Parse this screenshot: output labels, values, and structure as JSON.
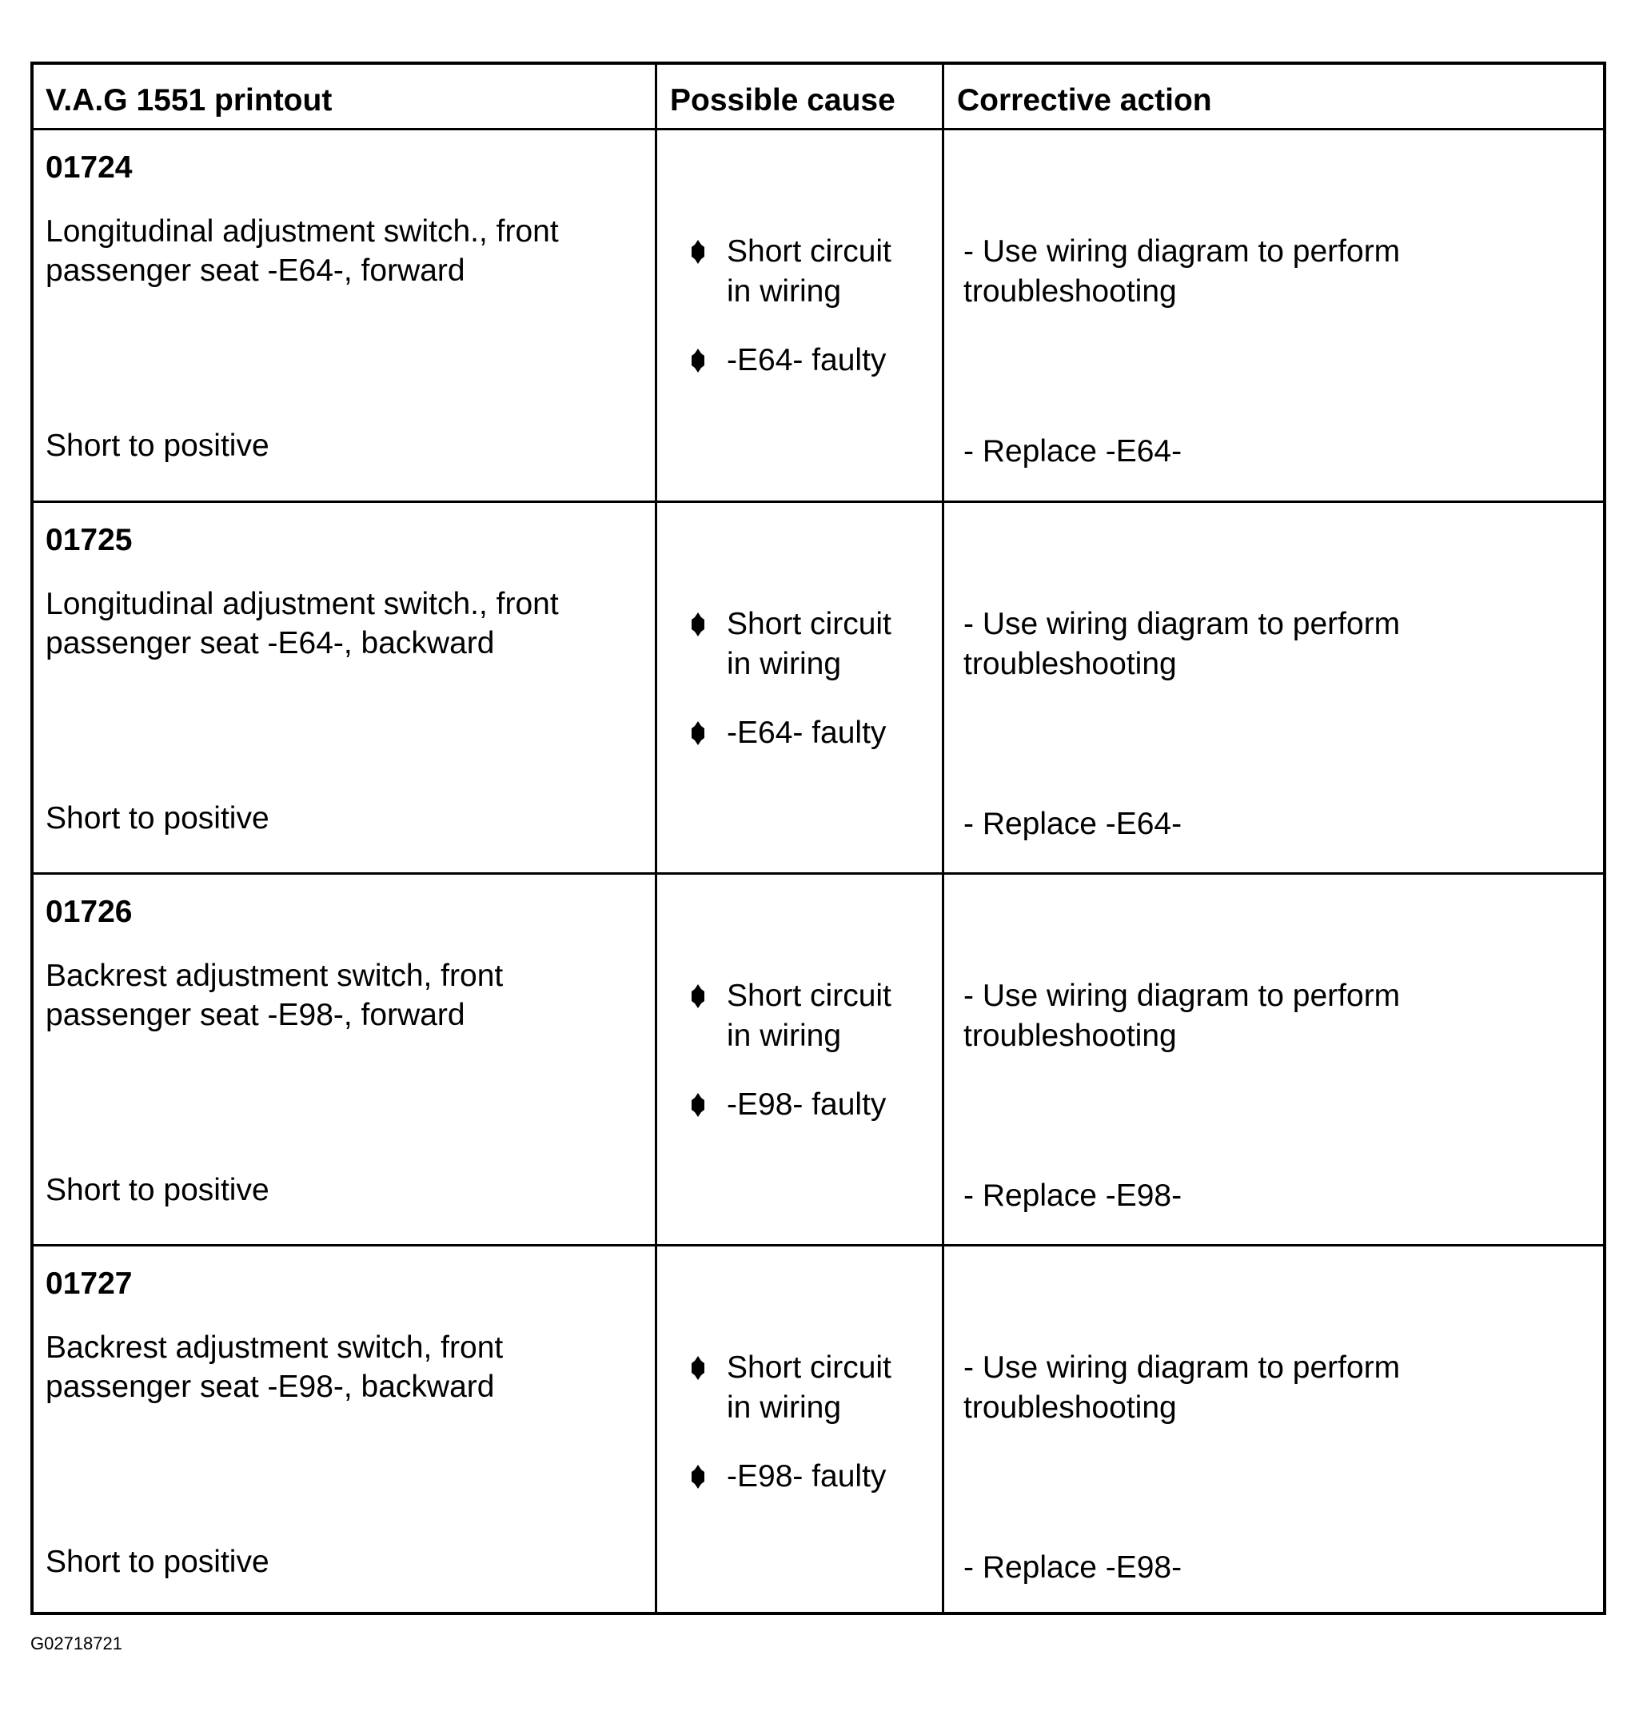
{
  "header": {
    "col1": "V.A.G 1551 printout",
    "col2": "Possible cause",
    "col3": "Corrective action"
  },
  "rows": [
    {
      "code": "01724",
      "description": [
        "Longitudinal adjustment switch., front",
        "passenger seat -E64-, forward"
      ],
      "fault_type": "Short to positive",
      "causes": [
        [
          "Short circuit",
          "in wiring"
        ],
        [
          "-E64- faulty"
        ]
      ],
      "actions": [
        [
          "- Use wiring diagram to perform",
          "troubleshooting"
        ],
        [
          "- Replace -E64-"
        ]
      ]
    },
    {
      "code": "01725",
      "description": [
        "Longitudinal adjustment switch., front",
        "passenger seat -E64-, backward"
      ],
      "fault_type": "Short to positive",
      "causes": [
        [
          "Short circuit",
          "in wiring"
        ],
        [
          "-E64- faulty"
        ]
      ],
      "actions": [
        [
          "- Use wiring diagram to perform",
          "troubleshooting"
        ],
        [
          "- Replace -E64-"
        ]
      ]
    },
    {
      "code": "01726",
      "description": [
        "Backrest adjustment switch, front",
        "passenger seat -E98-, forward"
      ],
      "fault_type": "Short to positive",
      "causes": [
        [
          "Short circuit",
          "in wiring"
        ],
        [
          "-E98- faulty"
        ]
      ],
      "actions": [
        [
          "- Use wiring diagram to perform",
          "troubleshooting"
        ],
        [
          "- Replace -E98-"
        ]
      ]
    },
    {
      "code": "01727",
      "description": [
        "Backrest adjustment switch, front",
        "passenger seat -E98-, backward"
      ],
      "fault_type": "Short to positive",
      "causes": [
        [
          "Short circuit",
          "in wiring"
        ],
        [
          "-E98- faulty"
        ]
      ],
      "actions": [
        [
          "- Use wiring diagram to perform",
          "troubleshooting"
        ],
        [
          "- Replace -E98-"
        ]
      ]
    }
  ],
  "footer_id": "G02718721",
  "icons": {
    "bullet": "diamond-bullet-icon"
  }
}
